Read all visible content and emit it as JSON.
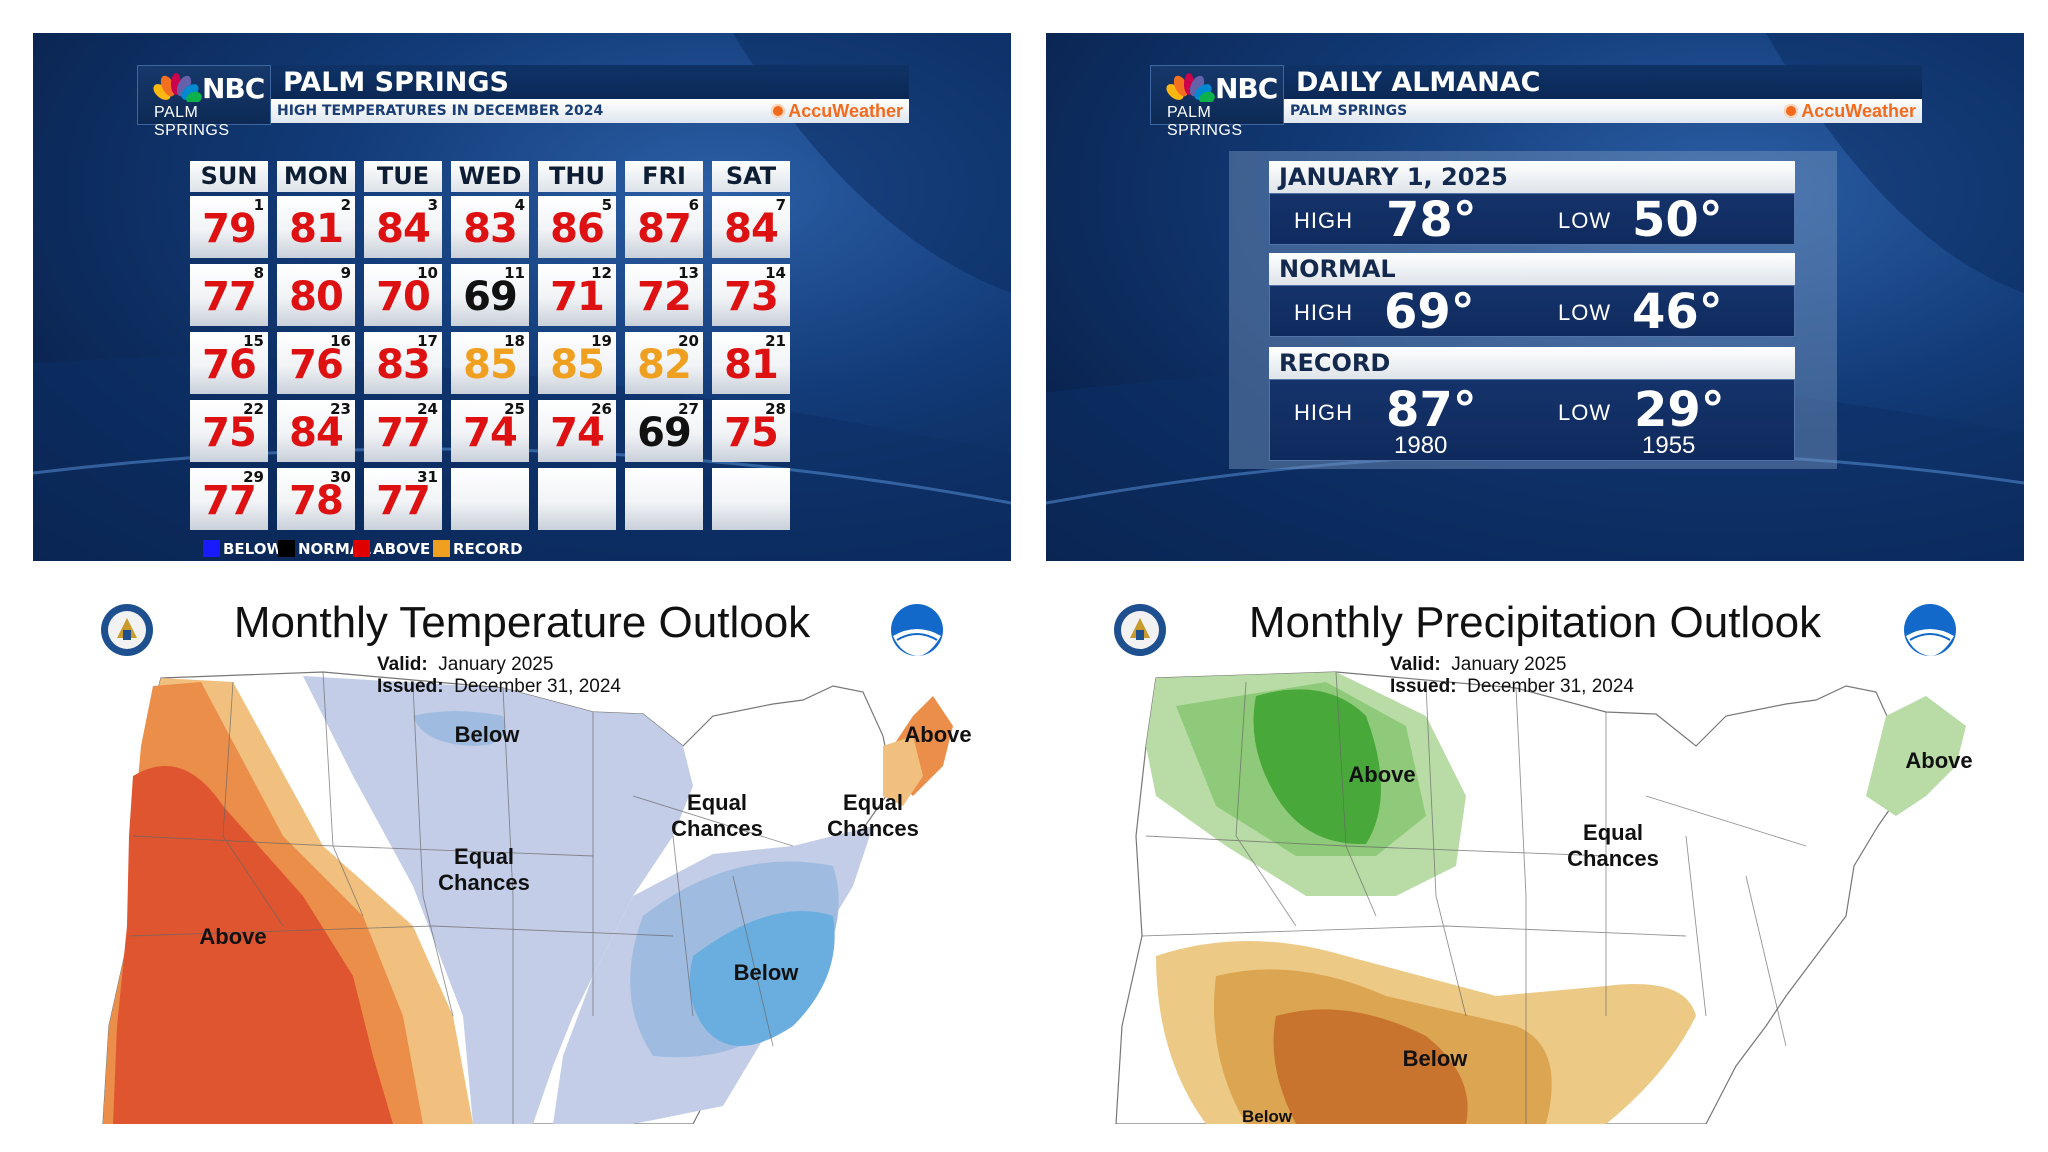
{
  "calendar_panel": {
    "network": "NBC",
    "station": "PALM SPRINGS",
    "title": "PALM SPRINGS",
    "subtitle": "HIGH TEMPERATURES IN DECEMBER 2024",
    "sponsor": "AccuWeather",
    "days": [
      "SUN",
      "MON",
      "TUE",
      "WED",
      "THU",
      "FRI",
      "SAT"
    ],
    "cells": [
      {
        "day": "1",
        "temp": "79",
        "cat": "above"
      },
      {
        "day": "2",
        "temp": "81",
        "cat": "above"
      },
      {
        "day": "3",
        "temp": "84",
        "cat": "above"
      },
      {
        "day": "4",
        "temp": "83",
        "cat": "above"
      },
      {
        "day": "5",
        "temp": "86",
        "cat": "above"
      },
      {
        "day": "6",
        "temp": "87",
        "cat": "above"
      },
      {
        "day": "7",
        "temp": "84",
        "cat": "above"
      },
      {
        "day": "8",
        "temp": "77",
        "cat": "above"
      },
      {
        "day": "9",
        "temp": "80",
        "cat": "above"
      },
      {
        "day": "10",
        "temp": "70",
        "cat": "above"
      },
      {
        "day": "11",
        "temp": "69",
        "cat": "normal"
      },
      {
        "day": "12",
        "temp": "71",
        "cat": "above"
      },
      {
        "day": "13",
        "temp": "72",
        "cat": "above"
      },
      {
        "day": "14",
        "temp": "73",
        "cat": "above"
      },
      {
        "day": "15",
        "temp": "76",
        "cat": "above"
      },
      {
        "day": "16",
        "temp": "76",
        "cat": "above"
      },
      {
        "day": "17",
        "temp": "83",
        "cat": "above"
      },
      {
        "day": "18",
        "temp": "85",
        "cat": "record"
      },
      {
        "day": "19",
        "temp": "85",
        "cat": "record"
      },
      {
        "day": "20",
        "temp": "82",
        "cat": "record"
      },
      {
        "day": "21",
        "temp": "81",
        "cat": "above"
      },
      {
        "day": "22",
        "temp": "75",
        "cat": "above"
      },
      {
        "day": "23",
        "temp": "84",
        "cat": "above"
      },
      {
        "day": "24",
        "temp": "77",
        "cat": "above"
      },
      {
        "day": "25",
        "temp": "74",
        "cat": "above"
      },
      {
        "day": "26",
        "temp": "74",
        "cat": "above"
      },
      {
        "day": "27",
        "temp": "69",
        "cat": "normal"
      },
      {
        "day": "28",
        "temp": "75",
        "cat": "above"
      },
      {
        "day": "29",
        "temp": "77",
        "cat": "above"
      },
      {
        "day": "30",
        "temp": "78",
        "cat": "above"
      },
      {
        "day": "31",
        "temp": "77",
        "cat": "above"
      },
      {
        "day": "",
        "temp": "",
        "cat": "none"
      },
      {
        "day": "",
        "temp": "",
        "cat": "none"
      },
      {
        "day": "",
        "temp": "",
        "cat": "none"
      },
      {
        "day": "",
        "temp": "",
        "cat": "none"
      }
    ],
    "legend": [
      {
        "label": "BELOW",
        "color": "#1a1aff"
      },
      {
        "label": "NORMAL",
        "color": "#000000"
      },
      {
        "label": "ABOVE",
        "color": "#e00000"
      },
      {
        "label": "RECORD",
        "color": "#f0a020"
      }
    ],
    "colors": {
      "above": "#dd1111",
      "normal": "#111111",
      "record": "#f0a020"
    }
  },
  "almanac_panel": {
    "network": "NBC",
    "station": "PALM SPRINGS",
    "title": "DAILY ALMANAC",
    "subtitle": "PALM SPRINGS",
    "sponsor": "AccuWeather",
    "date_label": "JANUARY 1, 2025",
    "normal_label": "NORMAL",
    "record_label": "RECORD",
    "high_label": "HIGH",
    "low_label": "LOW",
    "today_high": "78°",
    "today_low": "50°",
    "normal_high": "69°",
    "normal_low": "46°",
    "record_high": "87°",
    "record_high_year": "1980",
    "record_low": "29°",
    "record_low_year": "1955"
  },
  "temp_outlook": {
    "title": "Monthly Temperature Outlook",
    "valid_label": "Valid:",
    "valid_value": "January 2025",
    "issued_label": "Issued:",
    "issued_value": "December 31, 2024",
    "regions": {
      "below_north": "Below",
      "above_northeast": "Above",
      "equal_chances_greatlakes_1": "Equal",
      "equal_chances_greatlakes_2": "Chances",
      "equal_chances_ne_1": "Equal",
      "equal_chances_ne_2": "Chances",
      "equal_chances_plains_1": "Equal",
      "equal_chances_plains_2": "Chances",
      "above_west": "Above",
      "below_southeast": "Below"
    },
    "colors": {
      "above_light": "#f2c07e",
      "above_mid": "#ea8e4a",
      "above_dark": "#df5530",
      "below_light": "#c3cde8",
      "below_mid": "#9fbce0",
      "below_dark": "#6aaee0"
    }
  },
  "precip_outlook": {
    "title": "Monthly Precipitation Outlook",
    "valid_label": "Valid:",
    "valid_value": "January 2025",
    "issued_label": "Issued:",
    "issued_value": "December 31, 2024",
    "regions": {
      "above_north": "Above",
      "above_northeast": "Above",
      "equal_chances_1": "Equal",
      "equal_chances_2": "Chances",
      "below_south": "Below",
      "below_bottom": "Below"
    },
    "colors": {
      "above_light": "#b9dca6",
      "above_mid": "#8fca7a",
      "above_dark": "#49a83a",
      "below_light": "#ecca85",
      "below_mid": "#dca552",
      "below_dark": "#c8742e"
    }
  }
}
